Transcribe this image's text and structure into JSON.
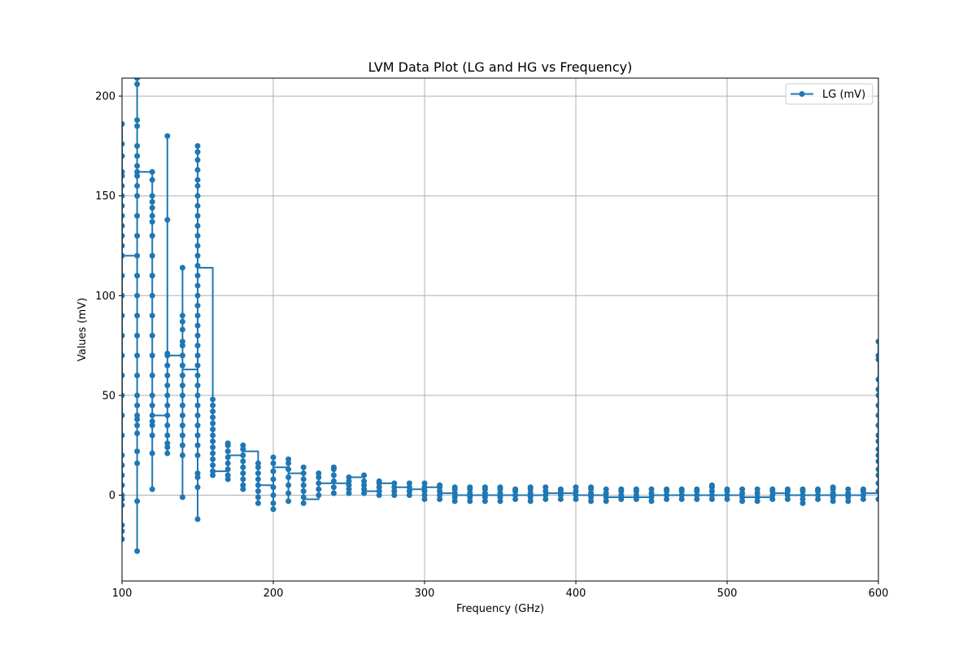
{
  "chart_data": {
    "type": "line",
    "title": "LVM Data Plot (LG and HG vs Frequency)",
    "xlabel": "Frequency (GHz)",
    "ylabel": "Values (mV)",
    "xlim": [
      100,
      600
    ],
    "ylim": [
      -43,
      209
    ],
    "xticks": [
      100,
      200,
      300,
      400,
      500,
      600
    ],
    "yticks": [
      0,
      50,
      100,
      150,
      200
    ],
    "grid": true,
    "legend_position": "top-right",
    "series": [
      {
        "name": "LG (mV)",
        "color": "#1f77b4",
        "marker": "circle",
        "groups": [
          {
            "x": 100,
            "values": [
              -22,
              -18,
              -15,
              -5,
              -2,
              0,
              5,
              10,
              15,
              20,
              30,
              40,
              50,
              60,
              70,
              80,
              90,
              100,
              110,
              120,
              125,
              130,
              135,
              140,
              145,
              150,
              155,
              160,
              162,
              170,
              176,
              186
            ],
            "last": 120
          },
          {
            "x": 110,
            "values": [
              -28,
              -3,
              16,
              22,
              31,
              35,
              38,
              40,
              45,
              50,
              60,
              70,
              80,
              90,
              100,
              110,
              120,
              130,
              140,
              150,
              155,
              160,
              162,
              165,
              170,
              175,
              185,
              188,
              206,
              209
            ],
            "last": 162
          },
          {
            "x": 120,
            "values": [
              3,
              21,
              30,
              35,
              37,
              40,
              45,
              50,
              60,
              70,
              80,
              90,
              100,
              110,
              120,
              130,
              137,
              140,
              144,
              147,
              150,
              158,
              162
            ],
            "last": 40
          },
          {
            "x": 130,
            "values": [
              21,
              24,
              26,
              30,
              35,
              40,
              45,
              50,
              55,
              60,
              65,
              70,
              71,
              138,
              180
            ],
            "last": 70
          },
          {
            "x": 140,
            "values": [
              -1,
              20,
              25,
              30,
              35,
              40,
              45,
              50,
              55,
              60,
              65,
              70,
              75,
              77,
              83,
              87,
              90,
              114
            ],
            "last": 63
          },
          {
            "x": 150,
            "values": [
              -12,
              4,
              9,
              11,
              20,
              25,
              30,
              35,
              40,
              45,
              50,
              55,
              60,
              65,
              70,
              75,
              80,
              85,
              90,
              95,
              100,
              105,
              110,
              115,
              120,
              125,
              130,
              135,
              140,
              145,
              150,
              155,
              158,
              163,
              168,
              172,
              175
            ],
            "last": 114
          },
          {
            "x": 160,
            "values": [
              10,
              12,
              15,
              18,
              21,
              24,
              27,
              30,
              33,
              36,
              39,
              42,
              45,
              48
            ],
            "last": 12
          },
          {
            "x": 170,
            "values": [
              8,
              10,
              13,
              16,
              19,
              22,
              25,
              26
            ],
            "last": 20
          },
          {
            "x": 180,
            "values": [
              3,
              5,
              8,
              11,
              14,
              17,
              20,
              23,
              25
            ],
            "last": 22
          },
          {
            "x": 190,
            "values": [
              -4,
              -1,
              2,
              5,
              8,
              11,
              14,
              16
            ],
            "last": 5
          },
          {
            "x": 200,
            "values": [
              -7,
              -4,
              0,
              4,
              8,
              12,
              16,
              19
            ],
            "last": 14
          },
          {
            "x": 210,
            "values": [
              -3,
              1,
              5,
              9,
              13,
              16,
              18
            ],
            "last": 11
          },
          {
            "x": 220,
            "values": [
              -4,
              -1,
              2,
              5,
              8,
              11,
              14
            ],
            "last": -2
          },
          {
            "x": 230,
            "values": [
              0,
              3,
              6,
              9,
              11
            ],
            "last": 6
          },
          {
            "x": 240,
            "values": [
              1,
              4,
              7,
              10,
              13,
              14
            ],
            "last": 6
          },
          {
            "x": 250,
            "values": [
              1,
              3,
              5,
              7,
              9
            ],
            "last": 9
          },
          {
            "x": 260,
            "values": [
              1,
              3,
              5,
              7,
              10
            ],
            "last": 2
          },
          {
            "x": 270,
            "values": [
              0,
              2,
              4,
              6,
              7
            ],
            "last": 6
          },
          {
            "x": 280,
            "values": [
              0,
              2,
              4,
              6
            ],
            "last": 4
          },
          {
            "x": 290,
            "values": [
              0,
              2,
              4,
              6
            ],
            "last": 3
          },
          {
            "x": 300,
            "values": [
              -2,
              0,
              2,
              4,
              6
            ],
            "last": 4
          },
          {
            "x": 310,
            "values": [
              -2,
              0,
              2,
              4,
              5
            ],
            "last": 1
          },
          {
            "x": 320,
            "values": [
              -3,
              -1,
              1,
              3,
              4
            ],
            "last": 0
          },
          {
            "x": 330,
            "values": [
              -3,
              -1,
              1,
              3,
              4
            ],
            "last": 0
          },
          {
            "x": 340,
            "values": [
              -3,
              -1,
              1,
              3,
              4
            ],
            "last": 0
          },
          {
            "x": 350,
            "values": [
              -3,
              -1,
              1,
              3,
              4
            ],
            "last": 0
          },
          {
            "x": 360,
            "values": [
              -2,
              0,
              2,
              3
            ],
            "last": 0
          },
          {
            "x": 370,
            "values": [
              -3,
              -1,
              1,
              3,
              4
            ],
            "last": 0
          },
          {
            "x": 380,
            "values": [
              -2,
              0,
              2,
              4
            ],
            "last": 1
          },
          {
            "x": 390,
            "values": [
              -2,
              0,
              2,
              3
            ],
            "last": 1
          },
          {
            "x": 400,
            "values": [
              -2,
              0,
              2,
              4
            ],
            "last": 0
          },
          {
            "x": 410,
            "values": [
              -3,
              -1,
              1,
              3,
              4
            ],
            "last": 0
          },
          {
            "x": 420,
            "values": [
              -3,
              -1,
              1,
              3
            ],
            "last": -1
          },
          {
            "x": 430,
            "values": [
              -2,
              0,
              2,
              3
            ],
            "last": -1
          },
          {
            "x": 440,
            "values": [
              -2,
              0,
              2,
              3
            ],
            "last": -1
          },
          {
            "x": 450,
            "values": [
              -3,
              -1,
              1,
              3
            ],
            "last": 0
          },
          {
            "x": 460,
            "values": [
              -2,
              0,
              2,
              3
            ],
            "last": 0
          },
          {
            "x": 470,
            "values": [
              -2,
              0,
              2,
              3
            ],
            "last": 0
          },
          {
            "x": 480,
            "values": [
              -2,
              0,
              2,
              3
            ],
            "last": 0
          },
          {
            "x": 490,
            "values": [
              -2,
              0,
              2,
              4,
              5
            ],
            "last": 0
          },
          {
            "x": 500,
            "values": [
              -2,
              0,
              2,
              3
            ],
            "last": 0
          },
          {
            "x": 510,
            "values": [
              -3,
              -1,
              1,
              3
            ],
            "last": -1
          },
          {
            "x": 520,
            "values": [
              -3,
              -1,
              1,
              3
            ],
            "last": -1
          },
          {
            "x": 530,
            "values": [
              -2,
              0,
              2,
              3
            ],
            "last": 1
          },
          {
            "x": 540,
            "values": [
              -2,
              0,
              2,
              3
            ],
            "last": 0
          },
          {
            "x": 550,
            "values": [
              -4,
              -2,
              0,
              2,
              3
            ],
            "last": 0
          },
          {
            "x": 560,
            "values": [
              -2,
              0,
              2,
              3
            ],
            "last": 0
          },
          {
            "x": 570,
            "values": [
              -3,
              -1,
              1,
              3,
              4
            ],
            "last": 0
          },
          {
            "x": 580,
            "values": [
              -3,
              -1,
              1,
              3
            ],
            "last": 0
          },
          {
            "x": 590,
            "values": [
              -2,
              0,
              2,
              3
            ],
            "last": 1
          },
          {
            "x": 600,
            "values": [
              -2,
              2,
              6,
              10,
              13,
              17,
              20,
              23,
              27,
              30,
              35,
              40,
              45,
              50,
              53,
              58,
              68,
              70,
              77
            ],
            "last": 1
          }
        ]
      }
    ]
  }
}
